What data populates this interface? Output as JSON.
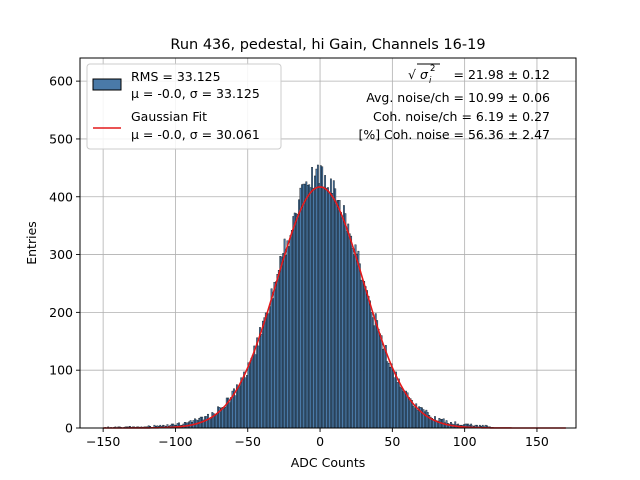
{
  "chart_data": {
    "type": "bar",
    "title": "Run 436, pedestal, hi Gain, Channels 16-19",
    "xlabel": "ADC Counts",
    "ylabel": "Entries",
    "xlim": [
      -166,
      177
    ],
    "ylim": [
      0,
      640
    ],
    "xticks": [
      "−150",
      "−100",
      "−50",
      "0",
      "50",
      "100",
      "150"
    ],
    "xtick_values": [
      -150,
      -100,
      -50,
      0,
      50,
      100,
      150
    ],
    "yticks": [
      "0",
      "100",
      "200",
      "300",
      "400",
      "500",
      "600"
    ],
    "ytick_values": [
      0,
      100,
      200,
      300,
      400,
      500,
      600
    ],
    "grid": true,
    "legend_position": "top-left",
    "histogram": {
      "name": "RMS = 33.125",
      "label2": "μ = -0.0, σ = 33.125",
      "color": "#4a7aa8",
      "edge_color": "#000000",
      "bin_start": -150,
      "bin_width": 1,
      "sigma": 33.125,
      "peak": 440
    },
    "fit": {
      "name": "Gaussian Fit",
      "label2": "μ = -0.0, σ = 30.061",
      "color": "#e31a1c",
      "mu": 0,
      "sigma": 30.061,
      "amplitude": 417,
      "x_range": [
        -150,
        170
      ]
    },
    "annotations": {
      "line1_value": "= 21.98 ± 0.12",
      "line2": "Avg. noise/ch = 10.99 ± 0.06",
      "line3": "Coh. noise/ch = 6.19 ± 0.27",
      "line4": "[%] Coh. noise = 56.36 ± 2.47"
    }
  }
}
